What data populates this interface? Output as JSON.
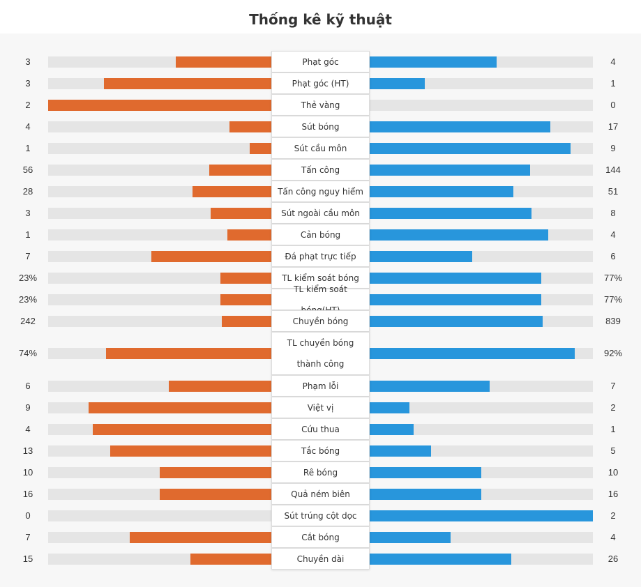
{
  "title": "Thống kê kỹ thuật",
  "colors": {
    "home": "#e06a2e",
    "away": "#2896dc",
    "track": "#e5e5e5"
  },
  "chart_data": {
    "type": "bar",
    "title": "Thống kê kỹ thuật",
    "orientation": "diverging-horizontal",
    "stats": [
      {
        "label": "Phạt góc",
        "home": "3",
        "away": "4",
        "home_share": 0.429,
        "away_share": 0.571
      },
      {
        "label": "Phạt góc (HT)",
        "home": "3",
        "away": "1",
        "home_share": 0.75,
        "away_share": 0.25
      },
      {
        "label": "Thẻ vàng",
        "home": "2",
        "away": "0",
        "home_share": 1.0,
        "away_share": 0.0
      },
      {
        "label": "Sút bóng",
        "home": "4",
        "away": "17",
        "home_share": 0.19,
        "away_share": 0.81
      },
      {
        "label": "Sút cầu môn",
        "home": "1",
        "away": "9",
        "home_share": 0.1,
        "away_share": 0.9
      },
      {
        "label": "Tấn công",
        "home": "56",
        "away": "144",
        "home_share": 0.28,
        "away_share": 0.72
      },
      {
        "label": "Tấn công nguy hiểm",
        "home": "28",
        "away": "51",
        "home_share": 0.354,
        "away_share": 0.646
      },
      {
        "label": "Sút ngoài cầu môn",
        "home": "3",
        "away": "8",
        "home_share": 0.273,
        "away_share": 0.727
      },
      {
        "label": "Cản bóng",
        "home": "1",
        "away": "4",
        "home_share": 0.2,
        "away_share": 0.8
      },
      {
        "label": "Đá phạt trực tiếp",
        "home": "7",
        "away": "6",
        "home_share": 0.538,
        "away_share": 0.462
      },
      {
        "label": "TL kiểm soát bóng",
        "home": "23%",
        "away": "77%",
        "home_share": 0.23,
        "away_share": 0.77
      },
      {
        "label": "TL kiểm soát bóng(HT)",
        "home": "23%",
        "away": "77%",
        "home_share": 0.23,
        "away_share": 0.77
      },
      {
        "label": "Chuyền bóng",
        "home": "242",
        "away": "839",
        "home_share": 0.224,
        "away_share": 0.776
      },
      {
        "label": "TL chuyền bóng thành công",
        "home": "74%",
        "away": "92%",
        "home_share": 0.74,
        "away_share": 0.92
      },
      {
        "label": "Phạm lỗi",
        "home": "6",
        "away": "7",
        "home_share": 0.462,
        "away_share": 0.538
      },
      {
        "label": "Việt vị",
        "home": "9",
        "away": "2",
        "home_share": 0.818,
        "away_share": 0.182
      },
      {
        "label": "Cứu thua",
        "home": "4",
        "away": "1",
        "home_share": 0.8,
        "away_share": 0.2
      },
      {
        "label": "Tắc bóng",
        "home": "13",
        "away": "5",
        "home_share": 0.722,
        "away_share": 0.278
      },
      {
        "label": "Rê bóng",
        "home": "10",
        "away": "10",
        "home_share": 0.5,
        "away_share": 0.5
      },
      {
        "label": "Quả ném biên",
        "home": "16",
        "away": "16",
        "home_share": 0.5,
        "away_share": 0.5
      },
      {
        "label": "Sút trúng cột dọc",
        "home": "0",
        "away": "2",
        "home_share": 0.0,
        "away_share": 1.0
      },
      {
        "label": "Cắt bóng",
        "home": "7",
        "away": "4",
        "home_share": 0.636,
        "away_share": 0.364
      },
      {
        "label": "Chuyền dài",
        "home": "15",
        "away": "26",
        "home_share": 0.366,
        "away_share": 0.634
      }
    ]
  }
}
